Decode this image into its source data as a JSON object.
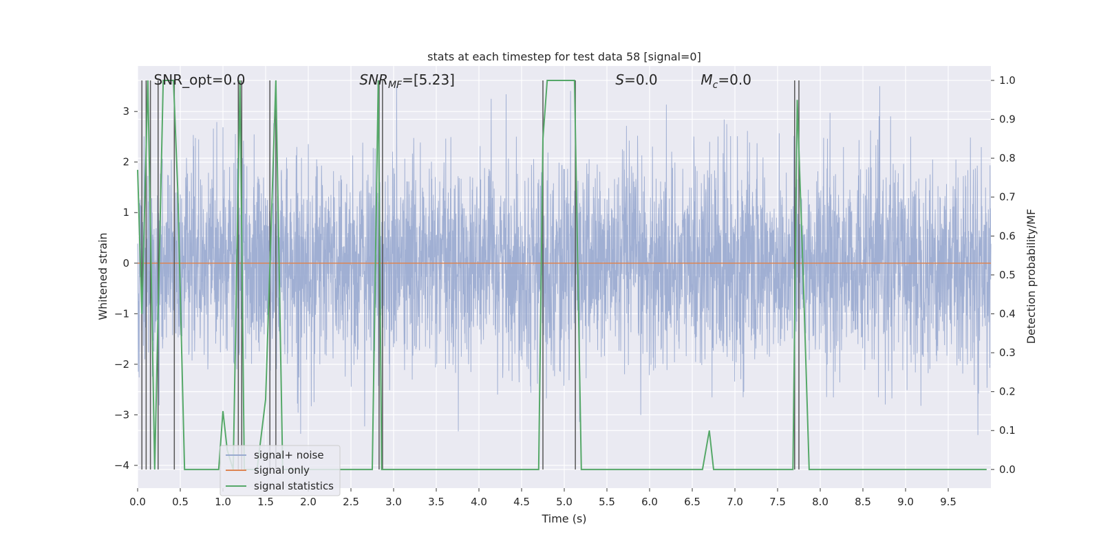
{
  "chart_data": {
    "type": "line",
    "title": "stats at each timestep for test data 58 [signal=0]",
    "xlabel": "Time (s)",
    "ylabel": "Whitened strain",
    "y2label": "Detection probability/MF",
    "xlim": [
      0,
      10
    ],
    "ylim": [
      -4.45,
      3.9
    ],
    "y2lim": [
      -0.048,
      1.037
    ],
    "x_ticks": [
      "0.0",
      "0.5",
      "1.0",
      "1.5",
      "2.0",
      "2.5",
      "3.0",
      "3.5",
      "4.0",
      "4.5",
      "5.0",
      "5.5",
      "6.0",
      "6.5",
      "7.0",
      "7.5",
      "8.0",
      "8.5",
      "9.0",
      "9.5"
    ],
    "y_ticks": [
      "3",
      "2",
      "1",
      "0",
      "−1",
      "−2",
      "−3",
      "−4"
    ],
    "y2_ticks": [
      "1.0",
      "0.9",
      "0.8",
      "0.7",
      "0.6",
      "0.5",
      "0.4",
      "0.3",
      "0.2",
      "0.1",
      "0.0"
    ],
    "grid": true,
    "legend_position": "lower-left",
    "annotations": [
      {
        "prefix": "SNR_opt",
        "sub": "",
        "value": "=0.0",
        "italic": false,
        "x": 0.19
      },
      {
        "prefix": "SNR",
        "sub": "MF",
        "value": "=[5.23]",
        "italic": true,
        "x": 2.6
      },
      {
        "prefix": "S",
        "sub": "",
        "value": "=0.0",
        "italic": true,
        "x": 5.6
      },
      {
        "prefix": "M",
        "sub": "c",
        "value": "=0.0",
        "italic": true,
        "x": 6.6
      }
    ],
    "series": [
      {
        "name": "signal+ noise",
        "color": "#98a9cf",
        "kind": "noise",
        "approx_std": 1.0,
        "min": -4.05,
        "max": 3.5
      },
      {
        "name": "signal only",
        "color": "#dd8452",
        "kind": "constant",
        "value": 0.0
      },
      {
        "name": "signal statistics",
        "color": "#55a868",
        "axis": "right",
        "x": [
          0.0,
          0.05,
          0.12,
          0.2,
          0.3,
          0.42,
          0.47,
          0.55,
          0.6,
          0.95,
          1.0,
          1.05,
          1.12,
          1.2,
          1.25,
          1.3,
          1.4,
          1.5,
          1.62,
          1.7,
          2.75,
          2.82,
          2.86,
          2.9,
          2.94,
          4.7,
          4.75,
          4.8,
          5.12,
          5.2,
          6.62,
          6.7,
          6.75,
          7.68,
          7.73,
          7.8,
          7.87,
          9.95
        ],
        "y": [
          0.77,
          0.4,
          1.0,
          0.0,
          1.0,
          1.0,
          0.72,
          0.0,
          0.0,
          0.0,
          0.15,
          0.05,
          0.0,
          1.0,
          0.0,
          0.0,
          0.0,
          0.18,
          1.0,
          0.0,
          0.0,
          1.0,
          0.0,
          0.0,
          0.0,
          0.0,
          0.85,
          1.0,
          1.0,
          0.0,
          0.0,
          0.1,
          0.0,
          0.0,
          0.95,
          0.5,
          0.0,
          0.0
        ]
      }
    ],
    "markers": {
      "color": "#555555",
      "x": [
        0.05,
        0.1,
        0.15,
        0.24,
        0.43,
        1.18,
        1.22,
        1.55,
        1.62,
        2.83,
        2.87,
        4.75,
        5.13,
        7.7,
        7.75
      ]
    }
  }
}
